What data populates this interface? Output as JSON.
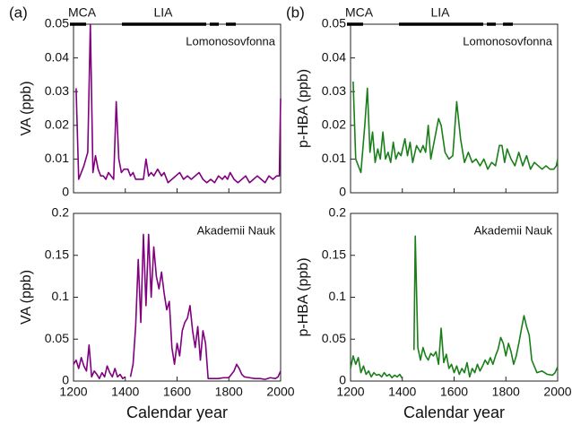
{
  "chart_data": [
    {
      "type": "line",
      "panel_label": "(a)",
      "period_labels": [
        "MCA",
        "LIA"
      ],
      "annotation": "Lomonosovfonna",
      "ylabel": "VA (ppb)",
      "xlim": [
        1200,
        2000
      ],
      "ylim": [
        0,
        0.05
      ],
      "yticks": [
        0,
        0.01,
        0.02,
        0.03,
        0.04,
        0.05
      ],
      "x": [
        1210,
        1220,
        1240,
        1255,
        1265,
        1275,
        1285,
        1295,
        1305,
        1315,
        1325,
        1335,
        1345,
        1355,
        1365,
        1375,
        1385,
        1395,
        1410,
        1420,
        1430,
        1440,
        1455,
        1470,
        1480,
        1490,
        1500,
        1510,
        1525,
        1540,
        1550,
        1565,
        1580,
        1595,
        1610,
        1625,
        1640,
        1655,
        1670,
        1685,
        1700,
        1715,
        1730,
        1745,
        1760,
        1775,
        1785,
        1795,
        1805,
        1820,
        1835,
        1850,
        1865,
        1880,
        1895,
        1910,
        1925,
        1940,
        1955,
        1970,
        1985,
        1995,
        2000
      ],
      "series": [
        {
          "color": "#800080",
          "values": [
            0.031,
            0.004,
            0.008,
            0.012,
            0.05,
            0.006,
            0.011,
            0.007,
            0.005,
            0.005,
            0.004,
            0.006,
            0.005,
            0.004,
            0.027,
            0.01,
            0.006,
            0.007,
            0.007,
            0.005,
            0.006,
            0.004,
            0.004,
            0.004,
            0.01,
            0.005,
            0.006,
            0.005,
            0.007,
            0.005,
            0.006,
            0.003,
            0.004,
            0.005,
            0.006,
            0.004,
            0.005,
            0.004,
            0.005,
            0.006,
            0.004,
            0.003,
            0.004,
            0.003,
            0.005,
            0.004,
            0.005,
            0.004,
            0.006,
            0.004,
            0.003,
            0.004,
            0.005,
            0.003,
            0.004,
            0.005,
            0.004,
            0.003,
            0.005,
            0.004,
            0.005,
            0.005,
            0.028
          ]
        }
      ]
    },
    {
      "type": "line",
      "panel_label": "(b)",
      "period_labels": [
        "MCA",
        "LIA"
      ],
      "annotation": "Lomonosovfonna",
      "ylabel": "p-HBA (ppb)",
      "xlim": [
        1200,
        2000
      ],
      "ylim": [
        0,
        0.05
      ],
      "yticks": [
        0,
        0.01,
        0.02,
        0.03,
        0.04,
        0.05
      ],
      "x": [
        1210,
        1220,
        1240,
        1255,
        1265,
        1275,
        1285,
        1295,
        1305,
        1315,
        1325,
        1335,
        1345,
        1355,
        1365,
        1375,
        1385,
        1395,
        1410,
        1420,
        1430,
        1440,
        1455,
        1470,
        1480,
        1490,
        1500,
        1510,
        1525,
        1540,
        1550,
        1565,
        1580,
        1595,
        1610,
        1625,
        1640,
        1655,
        1670,
        1685,
        1700,
        1715,
        1730,
        1745,
        1760,
        1775,
        1785,
        1795,
        1805,
        1820,
        1835,
        1850,
        1865,
        1880,
        1895,
        1910,
        1925,
        1940,
        1955,
        1970,
        1985,
        1995,
        2000
      ],
      "series": [
        {
          "color": "#1a7f1a",
          "values": [
            0.033,
            0.01,
            0.006,
            0.02,
            0.031,
            0.012,
            0.018,
            0.009,
            0.013,
            0.01,
            0.018,
            0.01,
            0.012,
            0.009,
            0.015,
            0.01,
            0.012,
            0.011,
            0.016,
            0.011,
            0.015,
            0.009,
            0.014,
            0.012,
            0.014,
            0.012,
            0.02,
            0.01,
            0.016,
            0.022,
            0.02,
            0.012,
            0.01,
            0.011,
            0.027,
            0.016,
            0.009,
            0.012,
            0.009,
            0.01,
            0.008,
            0.01,
            0.007,
            0.009,
            0.008,
            0.014,
            0.014,
            0.009,
            0.013,
            0.01,
            0.008,
            0.012,
            0.008,
            0.011,
            0.007,
            0.009,
            0.008,
            0.007,
            0.008,
            0.007,
            0.007,
            0.008,
            0.01
          ]
        }
      ]
    },
    {
      "type": "line",
      "annotation": "Akademii Nauk",
      "ylabel": "VA (ppb)",
      "xlabel": "Calendar year",
      "xlim": [
        1200,
        2000
      ],
      "xticks": [
        1200,
        1400,
        1600,
        1800,
        2000
      ],
      "ylim": [
        0,
        0.2
      ],
      "yticks": [
        0,
        0.05,
        0.1,
        0.15,
        0.2
      ],
      "x": [
        1200,
        1210,
        1220,
        1230,
        1240,
        1250,
        1260,
        1270,
        1280,
        1290,
        1300,
        1310,
        1320,
        1330,
        1340,
        1350,
        1360,
        1370,
        1380,
        1390,
        1400,
        1410,
        1420,
        1430,
        1440,
        1450,
        1460,
        1470,
        1480,
        1490,
        1500,
        1510,
        1520,
        1530,
        1540,
        1550,
        1560,
        1570,
        1580,
        1590,
        1600,
        1610,
        1620,
        1630,
        1640,
        1650,
        1660,
        1670,
        1680,
        1690,
        1700,
        1710,
        1720,
        1740,
        1760,
        1780,
        1800,
        1820,
        1830,
        1840,
        1850,
        1860,
        1880,
        1900,
        1920,
        1940,
        1960,
        1980,
        1990,
        2000
      ],
      "series": [
        {
          "color": "#800080",
          "values": [
            0.02,
            0.025,
            0.015,
            0.028,
            0.018,
            0.012,
            0.043,
            0.005,
            0.012,
            0.008,
            0.003,
            0.01,
            0.005,
            0.018,
            0.01,
            0.005,
            0.015,
            0.005,
            0.008,
            0.003,
            0.005,
            null,
            0.005,
            0.02,
            0.065,
            0.145,
            0.07,
            0.175,
            0.09,
            0.175,
            0.1,
            0.16,
            0.125,
            0.11,
            0.13,
            0.105,
            0.085,
            0.095,
            0.04,
            0.02,
            0.045,
            0.03,
            0.06,
            0.07,
            0.075,
            0.09,
            0.06,
            0.04,
            0.065,
            0.025,
            0.06,
            0.045,
            0.003,
            0.003,
            0.003,
            0.004,
            0.004,
            0.012,
            0.02,
            0.015,
            0.008,
            0.005,
            0.004,
            0.003,
            0.003,
            0.002,
            0.004,
            0.003,
            0.005,
            0.012
          ]
        }
      ]
    },
    {
      "type": "line",
      "annotation": "Akademii Nauk",
      "ylabel": "p-HBA (ppb)",
      "xlabel": "Calendar year",
      "xlim": [
        1200,
        2000
      ],
      "xticks": [
        1200,
        1400,
        1600,
        1800,
        2000
      ],
      "ylim": [
        0,
        0.2
      ],
      "yticks": [
        0,
        0.05,
        0.1,
        0.15,
        0.2
      ],
      "x": [
        1200,
        1210,
        1220,
        1230,
        1240,
        1250,
        1260,
        1270,
        1280,
        1290,
        1300,
        1310,
        1320,
        1330,
        1340,
        1350,
        1360,
        1370,
        1380,
        1390,
        1400,
        1420,
        1445,
        1450,
        1460,
        1470,
        1480,
        1490,
        1500,
        1510,
        1520,
        1530,
        1540,
        1550,
        1560,
        1570,
        1580,
        1590,
        1600,
        1610,
        1620,
        1630,
        1640,
        1650,
        1660,
        1670,
        1680,
        1690,
        1700,
        1710,
        1720,
        1730,
        1740,
        1750,
        1760,
        1770,
        1780,
        1790,
        1800,
        1810,
        1820,
        1830,
        1840,
        1850,
        1860,
        1870,
        1880,
        1890,
        1900,
        1920,
        1940,
        1960,
        1980,
        1990,
        2000
      ],
      "series": [
        {
          "color": "#1a7f1a",
          "values": [
            0.015,
            0.03,
            0.02,
            0.028,
            0.01,
            0.018,
            0.008,
            0.012,
            0.005,
            0.01,
            0.007,
            0.008,
            0.005,
            0.01,
            0.006,
            0.008,
            0.004,
            0.007,
            0.005,
            0.008,
            0.003,
            null,
            0.037,
            0.173,
            0.04,
            0.025,
            0.04,
            0.03,
            0.025,
            0.033,
            0.03,
            0.035,
            0.02,
            0.063,
            0.022,
            0.032,
            0.015,
            0.02,
            0.01,
            0.018,
            0.008,
            0.015,
            0.01,
            0.022,
            0.005,
            0.015,
            0.01,
            0.02,
            0.012,
            0.018,
            0.025,
            0.02,
            0.028,
            0.02,
            0.03,
            0.038,
            0.052,
            0.045,
            0.03,
            0.045,
            0.035,
            0.02,
            0.03,
            0.045,
            0.062,
            0.078,
            0.065,
            0.055,
            0.025,
            0.01,
            0.012,
            0.008,
            0.007,
            0.01,
            0.017
          ]
        }
      ]
    }
  ]
}
